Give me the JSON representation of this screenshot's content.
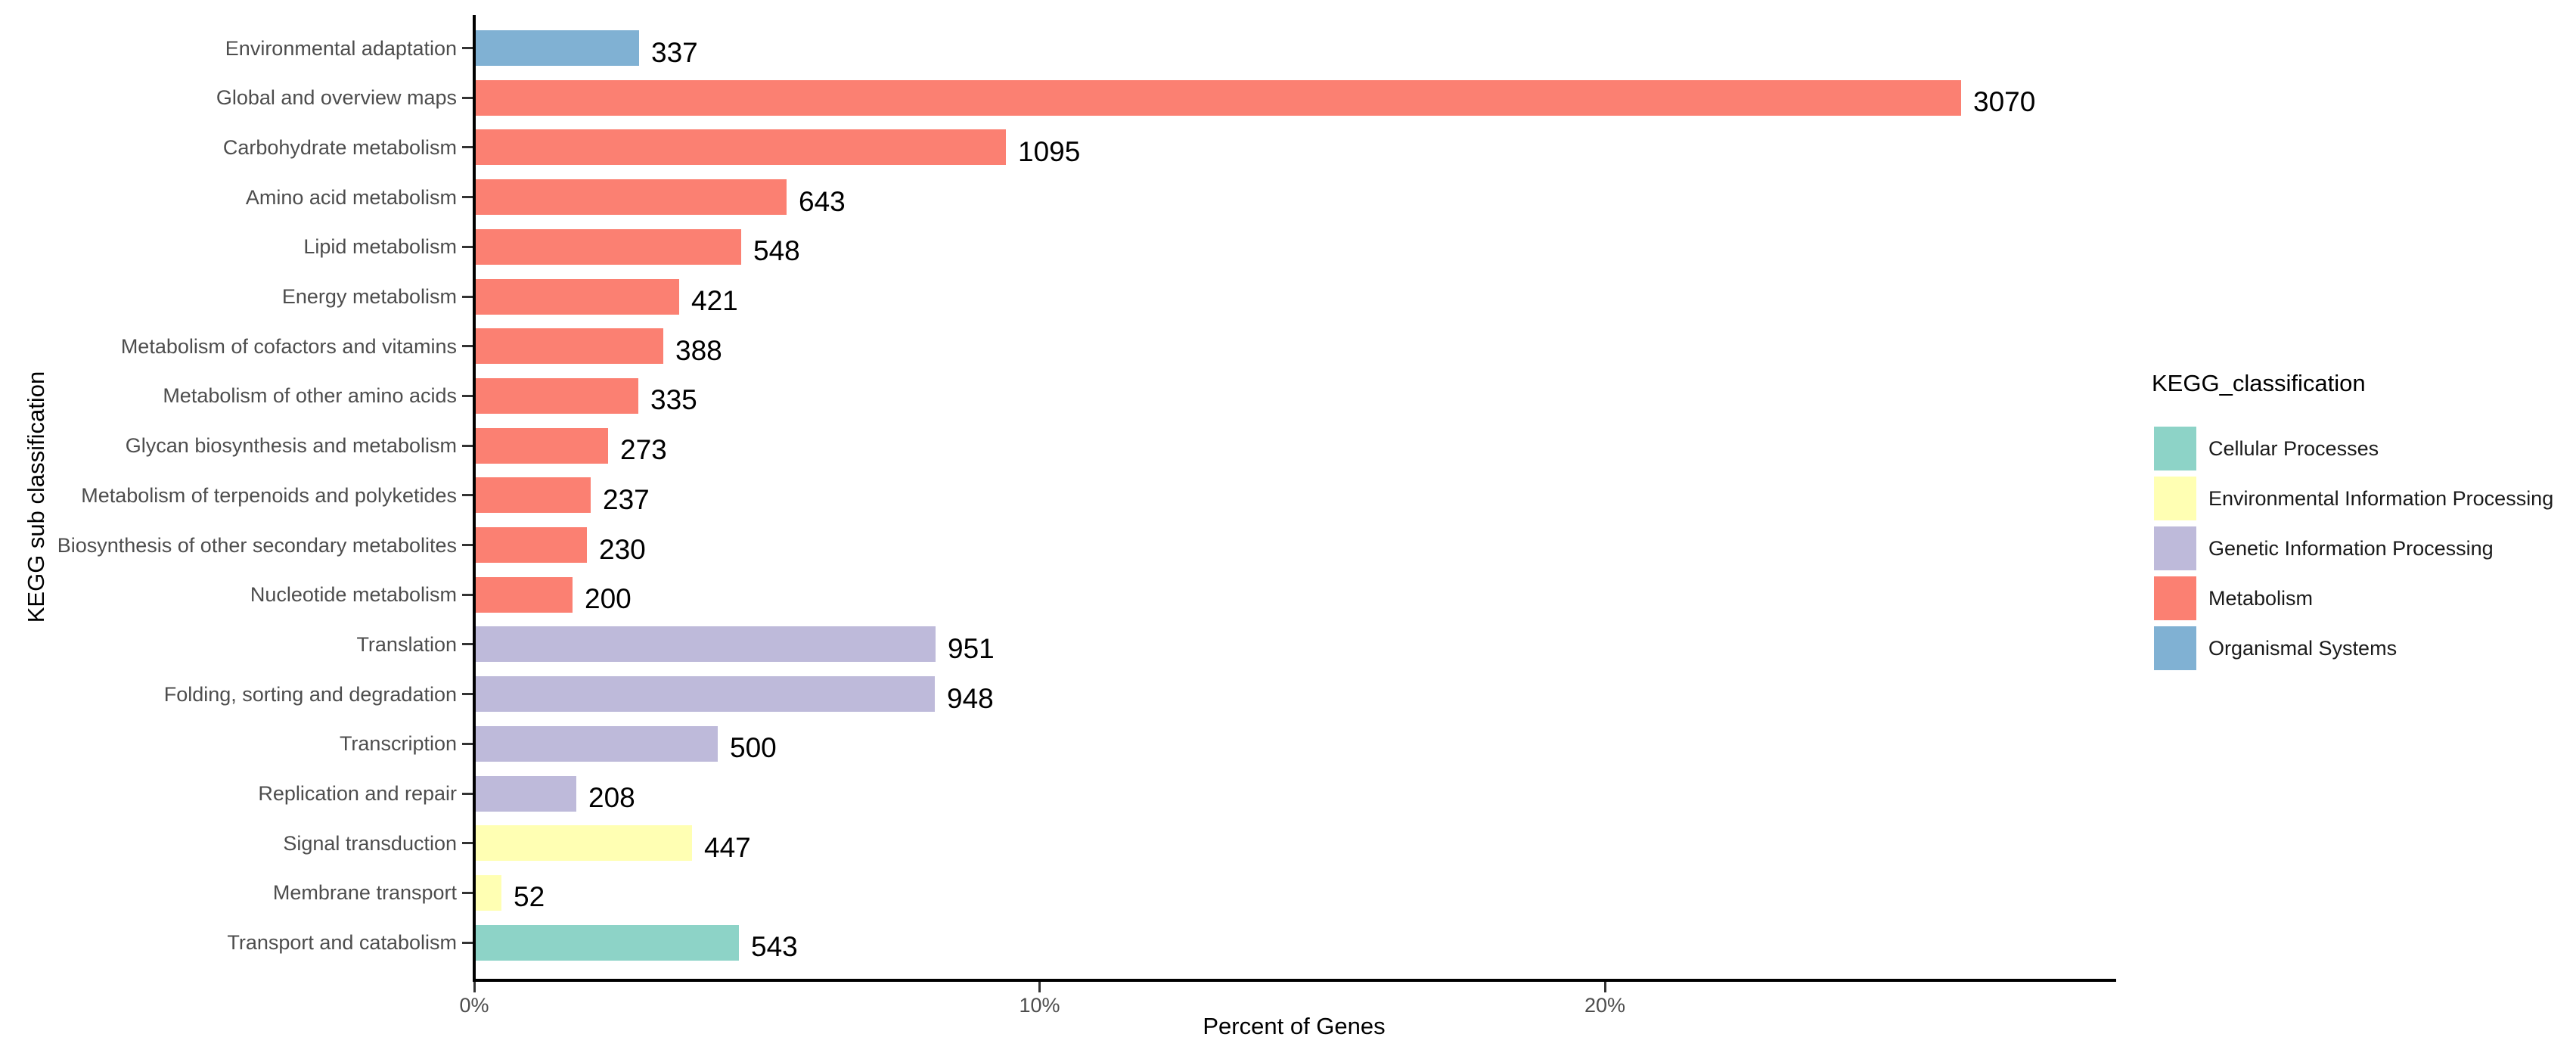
{
  "chart_data": {
    "type": "bar",
    "orientation": "horizontal",
    "xlabel": "Percent of Genes",
    "ylabel": "KEGG sub classification",
    "legend_title": "KEGG_classification",
    "legend_position": "right",
    "grid": false,
    "x_axis": {
      "unit": "%",
      "max_percent": 29,
      "ticks": [
        {
          "label": "0%",
          "percent": 0
        },
        {
          "label": "10%",
          "percent": 10
        },
        {
          "label": "20%",
          "percent": 20
        }
      ]
    },
    "groups": [
      {
        "name": "Cellular Processes",
        "color": "#8DD3C7"
      },
      {
        "name": "Environmental Information Processing",
        "color": "#FFFFB3"
      },
      {
        "name": "Genetic Information Processing",
        "color": "#BEBADA"
      },
      {
        "name": "Metabolism",
        "color": "#FB8072"
      },
      {
        "name": "Organismal Systems",
        "color": "#80B1D3"
      }
    ],
    "bars": [
      {
        "category": "Environmental adaptation",
        "genes": 337,
        "percent": 2.89,
        "group": "Organismal Systems"
      },
      {
        "category": "Global and overview maps",
        "genes": 3070,
        "percent": 26.28,
        "group": "Metabolism"
      },
      {
        "category": "Carbohydrate metabolism",
        "genes": 1095,
        "percent": 9.38,
        "group": "Metabolism"
      },
      {
        "category": "Amino acid metabolism",
        "genes": 643,
        "percent": 5.5,
        "group": "Metabolism"
      },
      {
        "category": "Lipid metabolism",
        "genes": 548,
        "percent": 4.69,
        "group": "Metabolism"
      },
      {
        "category": "Energy metabolism",
        "genes": 421,
        "percent": 3.6,
        "group": "Metabolism"
      },
      {
        "category": "Metabolism of cofactors and vitamins",
        "genes": 388,
        "percent": 3.32,
        "group": "Metabolism"
      },
      {
        "category": "Metabolism of other amino acids",
        "genes": 335,
        "percent": 2.87,
        "group": "Metabolism"
      },
      {
        "category": "Glycan biosynthesis and metabolism",
        "genes": 273,
        "percent": 2.34,
        "group": "Metabolism"
      },
      {
        "category": "Metabolism of terpenoids and polyketides",
        "genes": 237,
        "percent": 2.03,
        "group": "Metabolism"
      },
      {
        "category": "Biosynthesis of other secondary metabolites",
        "genes": 230,
        "percent": 1.97,
        "group": "Metabolism"
      },
      {
        "category": "Nucleotide metabolism",
        "genes": 200,
        "percent": 1.71,
        "group": "Metabolism"
      },
      {
        "category": "Translation",
        "genes": 951,
        "percent": 8.14,
        "group": "Genetic Information Processing"
      },
      {
        "category": "Folding, sorting and degradation",
        "genes": 948,
        "percent": 8.12,
        "group": "Genetic Information Processing"
      },
      {
        "category": "Transcription",
        "genes": 500,
        "percent": 4.28,
        "group": "Genetic Information Processing"
      },
      {
        "category": "Replication and repair",
        "genes": 208,
        "percent": 1.78,
        "group": "Genetic Information Processing"
      },
      {
        "category": "Signal transduction",
        "genes": 447,
        "percent": 3.83,
        "group": "Environmental Information Processing"
      },
      {
        "category": "Membrane transport",
        "genes": 52,
        "percent": 0.45,
        "group": "Environmental Information Processing"
      },
      {
        "category": "Transport and catabolism",
        "genes": 543,
        "percent": 4.65,
        "group": "Cellular Processes"
      }
    ],
    "colors": {
      "background": "#FFFFFF",
      "axis_line": "#000000",
      "axis_text": "#4D4D4D",
      "value_text": "#000000"
    }
  }
}
